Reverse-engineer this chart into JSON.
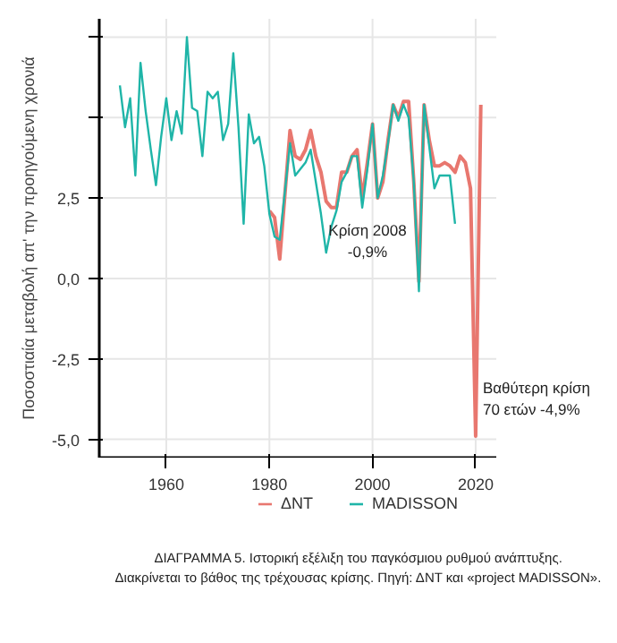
{
  "chart_data": {
    "type": "line",
    "ylabel": "Ποσοστιαία μεταβολή απ' την προηγούμενη χρονιά",
    "xlim": [
      1947,
      2024
    ],
    "xticks": [
      1960,
      1980,
      2000,
      2020
    ],
    "ylim": [
      -5.57,
      8.07
    ],
    "yticks": [
      {
        "value": -5,
        "label": "-5,0"
      },
      {
        "value": -2.5,
        "label": "-2,5"
      },
      {
        "value": 0,
        "label": "0,0"
      },
      {
        "value": 2.5,
        "label": "2,5"
      },
      {
        "value": 5,
        "label": null
      },
      {
        "value": 7.5,
        "label": null
      }
    ],
    "grid": true,
    "legend": "bottom",
    "line_style": "solid",
    "series": [
      {
        "name": "ΔΝΤ",
        "color": "#e8776f",
        "x": [
          1980,
          1981,
          1982,
          1983,
          1984,
          1985,
          1986,
          1987,
          1988,
          1989,
          1990,
          1991,
          1992,
          1993,
          1994,
          1995,
          1996,
          1997,
          1998,
          1999,
          2000,
          2001,
          2002,
          2003,
          2004,
          2005,
          2006,
          2007,
          2008,
          2009,
          2010,
          2011,
          2012,
          2013,
          2014,
          2015,
          2016,
          2017,
          2018,
          2019,
          2020,
          2021
        ],
        "values": [
          2.1,
          1.9,
          0.6,
          2.6,
          4.6,
          3.8,
          3.7,
          4.0,
          4.6,
          3.8,
          3.3,
          2.4,
          2.2,
          2.2,
          3.3,
          3.3,
          3.8,
          4.0,
          2.5,
          3.6,
          4.8,
          2.5,
          3.0,
          4.3,
          5.4,
          5.0,
          5.5,
          5.5,
          3.0,
          -0.1,
          5.4,
          4.3,
          3.5,
          3.5,
          3.6,
          3.5,
          3.3,
          3.8,
          3.6,
          2.8,
          -4.9,
          5.4
        ]
      },
      {
        "name": "MADISSON",
        "color": "#1fb5a8",
        "x": [
          1951,
          1952,
          1953,
          1954,
          1955,
          1956,
          1957,
          1958,
          1959,
          1960,
          1961,
          1962,
          1963,
          1964,
          1965,
          1966,
          1967,
          1968,
          1969,
          1970,
          1971,
          1972,
          1973,
          1974,
          1975,
          1976,
          1977,
          1978,
          1979,
          1980,
          1981,
          1982,
          1983,
          1984,
          1985,
          1986,
          1987,
          1988,
          1989,
          1990,
          1991,
          1992,
          1993,
          1994,
          1995,
          1996,
          1997,
          1998,
          1999,
          2000,
          2001,
          2002,
          2003,
          2004,
          2005,
          2006,
          2007,
          2008,
          2009,
          2010,
          2011,
          2012,
          2013,
          2014,
          2015,
          2016
        ],
        "values": [
          6.0,
          4.7,
          5.6,
          3.2,
          6.7,
          5.2,
          4.0,
          2.9,
          4.4,
          5.6,
          4.3,
          5.2,
          4.5,
          7.5,
          5.3,
          5.2,
          3.8,
          5.8,
          5.6,
          5.8,
          4.3,
          4.8,
          7.0,
          4.7,
          1.7,
          5.1,
          4.2,
          4.4,
          3.5,
          2.0,
          1.3,
          1.2,
          2.7,
          4.2,
          3.2,
          3.4,
          3.6,
          4.0,
          3.0,
          2.0,
          0.8,
          1.6,
          2.1,
          3.0,
          3.3,
          3.8,
          3.8,
          2.2,
          3.4,
          4.8,
          2.5,
          3.2,
          4.2,
          5.4,
          4.9,
          5.4,
          5.0,
          3.0,
          -0.4,
          5.4,
          4.1,
          2.8,
          3.2,
          3.2,
          3.2,
          1.7
        ]
      }
    ],
    "annotations": [
      "Κρίση 2008\n-0,9%",
      {
        "text": "Βαθύτερη κρίση\n70 ετών -4,9%",
        "x": 2020,
        "y": -4.9
      },
      "ΔΙΑΓΡΑΜΜΑ 5. Ιστορική εξέλιξη του παγκόσμιου ρυθμού ανάπτυξης.\nΔιακρίνεται το βάθος της τρέχουσας κρίσης. Πηγή: ΔΝΤ και «project MADISSON»."
    ]
  }
}
